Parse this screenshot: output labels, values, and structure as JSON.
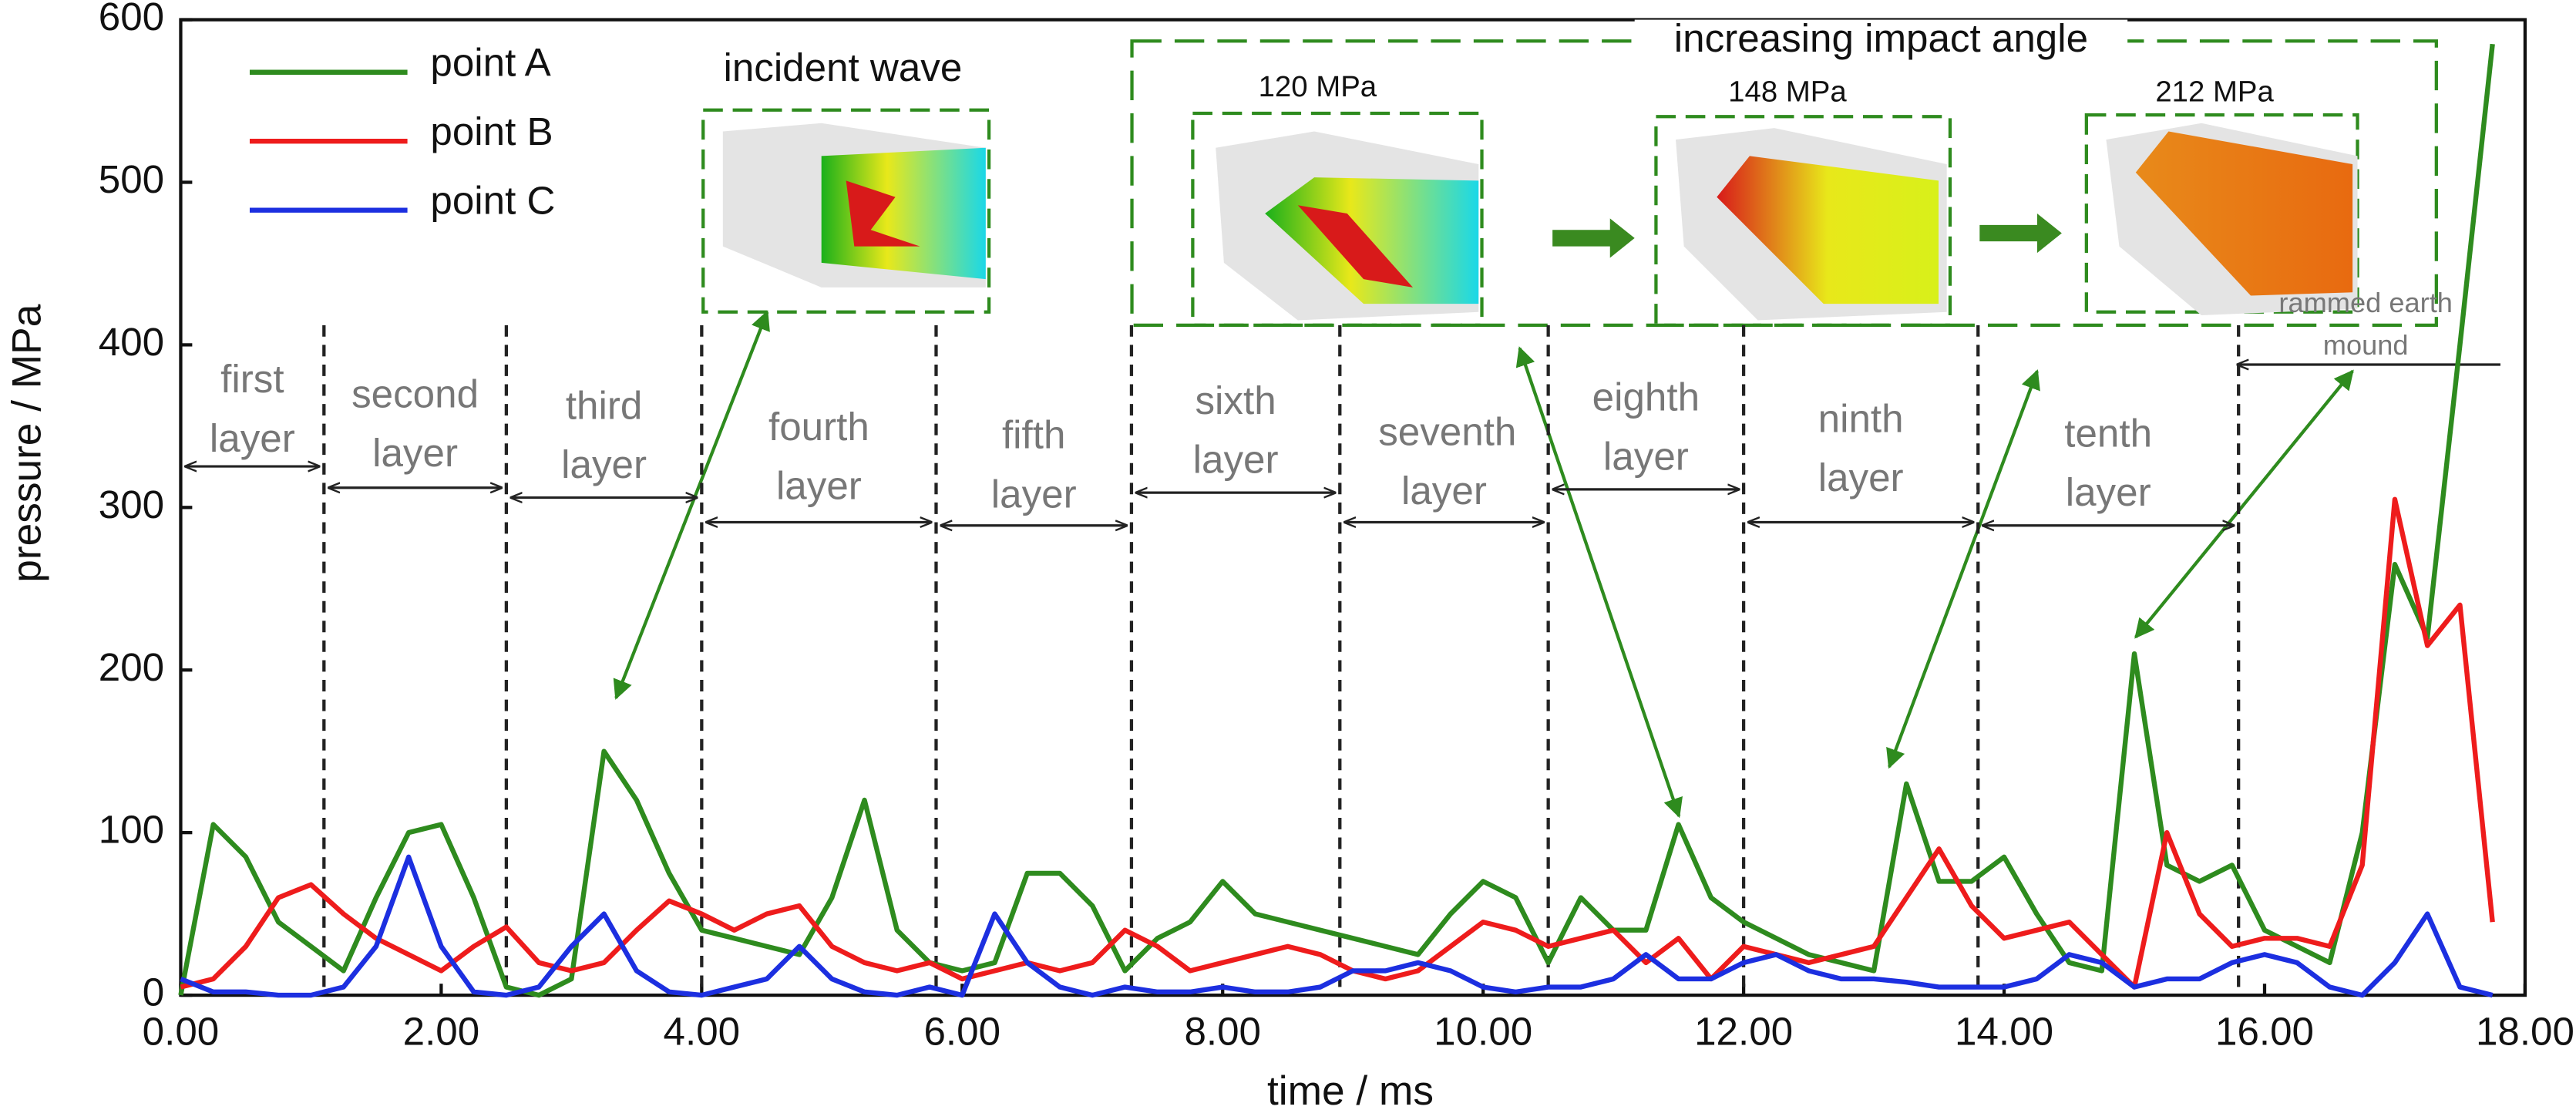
{
  "chart_data": {
    "type": "line",
    "xlabel": "time / ms",
    "ylabel": "pressure / MPa",
    "x": [
      0,
      0.25,
      0.5,
      0.75,
      1,
      1.25,
      1.5,
      1.75,
      2,
      2.25,
      2.5,
      2.75,
      3,
      3.25,
      3.5,
      3.75,
      4,
      4.25,
      4.5,
      4.75,
      5,
      5.25,
      5.5,
      5.75,
      6,
      6.25,
      6.5,
      6.75,
      7,
      7.25,
      7.5,
      7.75,
      8,
      8.25,
      8.5,
      8.75,
      9,
      9.25,
      9.5,
      9.75,
      10,
      10.25,
      10.5,
      10.75,
      11,
      11.25,
      11.5,
      11.75,
      12,
      12.25,
      12.5,
      12.75,
      13,
      13.25,
      13.5,
      13.75,
      14,
      14.25,
      14.5,
      14.75,
      15,
      15.25,
      15.5,
      15.75,
      16,
      16.25,
      16.5,
      16.75,
      17,
      17.25,
      17.5,
      17.75
    ],
    "series": [
      {
        "name": "point A",
        "color": "#2e8b1e",
        "values": [
          0,
          105,
          85,
          45,
          30,
          15,
          60,
          100,
          105,
          60,
          5,
          0,
          10,
          150,
          120,
          75,
          40,
          35,
          30,
          25,
          60,
          120,
          40,
          20,
          15,
          20,
          75,
          75,
          55,
          15,
          35,
          45,
          70,
          50,
          45,
          40,
          35,
          30,
          25,
          50,
          70,
          60,
          20,
          60,
          40,
          40,
          105,
          60,
          45,
          35,
          25,
          20,
          15,
          130,
          70,
          70,
          85,
          50,
          20,
          15,
          210,
          80,
          70,
          80,
          40,
          30,
          20,
          100,
          265,
          220,
          400,
          585
        ]
      },
      {
        "name": "point B",
        "color": "#ee1c1c",
        "values": [
          5,
          10,
          30,
          60,
          68,
          50,
          35,
          25,
          15,
          30,
          42,
          20,
          15,
          20,
          40,
          58,
          50,
          40,
          50,
          55,
          30,
          20,
          15,
          20,
          10,
          15,
          20,
          15,
          20,
          40,
          30,
          15,
          20,
          25,
          30,
          25,
          15,
          10,
          15,
          30,
          45,
          40,
          30,
          35,
          40,
          20,
          35,
          10,
          30,
          25,
          20,
          25,
          30,
          60,
          90,
          55,
          35,
          40,
          45,
          25,
          5,
          100,
          50,
          30,
          35,
          35,
          30,
          80,
          305,
          215,
          240,
          45
        ]
      },
      {
        "name": "point C",
        "color": "#1c2fe0",
        "values": [
          10,
          2,
          2,
          0,
          0,
          5,
          30,
          85,
          30,
          2,
          0,
          5,
          30,
          50,
          15,
          2,
          0,
          5,
          10,
          30,
          10,
          2,
          0,
          5,
          0,
          50,
          20,
          5,
          0,
          5,
          2,
          2,
          5,
          2,
          2,
          5,
          15,
          15,
          20,
          15,
          5,
          2,
          5,
          5,
          10,
          25,
          10,
          10,
          20,
          25,
          15,
          10,
          10,
          8,
          5,
          5,
          5,
          10,
          25,
          20,
          5,
          10,
          10,
          20,
          25,
          20,
          5,
          0,
          20,
          50,
          5,
          0
        ]
      }
    ],
    "xlim": [
      0,
      18
    ],
    "ylim": [
      0,
      600
    ],
    "xticks": [
      {
        "value": 0,
        "label": "0.00"
      },
      {
        "value": 2,
        "label": "2.00"
      },
      {
        "value": 4,
        "label": "4.00"
      },
      {
        "value": 6,
        "label": "6.00"
      },
      {
        "value": 8,
        "label": "8.00"
      },
      {
        "value": 10,
        "label": "10.00"
      },
      {
        "value": 12,
        "label": "12.00"
      },
      {
        "value": 14,
        "label": "14.00"
      },
      {
        "value": 16,
        "label": "16.00"
      },
      {
        "value": 18,
        "label": "18.00"
      }
    ],
    "yticks": [
      0,
      100,
      200,
      300,
      400,
      500,
      600
    ],
    "legend": "upper left",
    "layer_boundaries": [
      1.1,
      2.5,
      4.0,
      5.8,
      7.3,
      8.9,
      10.5,
      12.0,
      13.8,
      15.8
    ],
    "layers": [
      "first layer",
      "second layer",
      "third layer",
      "fourth layer",
      "fifth layer",
      "sixth layer",
      "seventh layer",
      "eighth layer",
      "ninth layer",
      "tenth layer"
    ],
    "mound_label": "rammed earth mound",
    "incident_label": "incident wave",
    "impact_label": "increasing impact angle",
    "inset_labels": [
      "120 MPa",
      "148 MPa",
      "212 MPa"
    ]
  }
}
